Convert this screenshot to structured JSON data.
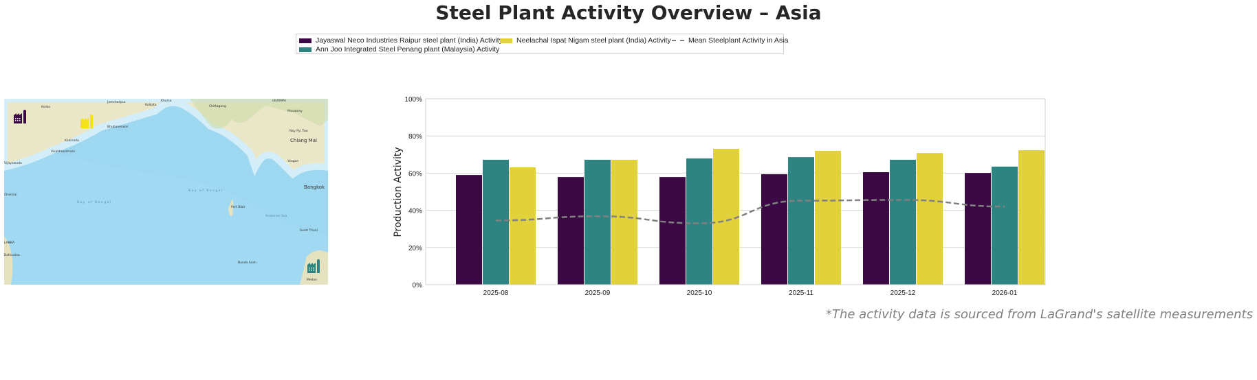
{
  "title": "Steel Plant Activity Overview – Asia",
  "footnote": "*The activity data is sourced from LaGrand's satellite measurements",
  "legend": {
    "items": [
      {
        "label": "Jayaswal Neco Industries Raipur steel plant (India) Activity",
        "color": "#3b0a45",
        "kind": "bar"
      },
      {
        "label": "Ann Joo Integrated Steel Penang plant (Malaysia) Activity",
        "color": "#2d8480",
        "kind": "bar"
      },
      {
        "label": "Neelachal Ispat Nigam steel plant (India) Activity",
        "color": "#e1d13b",
        "kind": "bar"
      },
      {
        "label": "Mean Steelplant Activity in Asia",
        "color": "#808080",
        "kind": "dashed-line"
      }
    ]
  },
  "map": {
    "labels": [
      "Korba",
      "Jamshedpur",
      "Khulna",
      "Kolkata",
      "Chittagong",
      "(BURMA)",
      "Mandalay",
      "Bhubaneswar",
      "Nay Pyi Taw",
      "Kakinada",
      "Visakhapatnam",
      "Vijayawada",
      "Yangon",
      "Chiang Mai",
      "Bay of Bengal",
      "Bay of Bengal",
      "Chennai",
      "Port Blair",
      "Andaman Sea",
      "Bangkok",
      "LANKA",
      "Surat Thani",
      "Banda Aceh",
      "Medan",
      "Batticaloa"
    ],
    "markers": [
      {
        "plant": "Jayaswal Neco Industries Raipur",
        "icon": "factory-icon",
        "color": "#3b0a45"
      },
      {
        "plant": "Neelachal Ispat Nigam",
        "icon": "factory-icon",
        "color": "#f5e11a"
      },
      {
        "plant": "Ann Joo Integrated Steel Penang",
        "icon": "factory-icon",
        "color": "#2d8480"
      }
    ]
  },
  "chart_data": {
    "type": "bar",
    "title": "",
    "xlabel": "",
    "ylabel": "Production Activity",
    "ylim": [
      0,
      100
    ],
    "yticks": [
      "0%",
      "20%",
      "40%",
      "60%",
      "80%",
      "100%"
    ],
    "grid": true,
    "categories": [
      "2025-08",
      "2025-09",
      "2025-10",
      "2025-11",
      "2025-12",
      "2026-01"
    ],
    "series": [
      {
        "name": "Jayaswal Neco Industries Raipur steel plant (India) Activity",
        "color": "#3b0a45",
        "values": [
          59.0,
          57.9,
          57.9,
          59.4,
          60.5,
          60.1
        ]
      },
      {
        "name": "Ann Joo Integrated Steel Penang plant (Malaysia) Activity",
        "color": "#2d8480",
        "values": [
          67.2,
          67.2,
          67.9,
          68.6,
          67.2,
          63.5
        ]
      },
      {
        "name": "Neelachal Ispat Nigam steel plant (India) Activity",
        "color": "#e1d13b",
        "values": [
          63.1,
          67.2,
          73.1,
          72.0,
          70.8,
          72.3
        ]
      }
    ],
    "line": {
      "name": "Mean Steelplant Activity in Asia",
      "color": "#808080",
      "style": "dashed",
      "values": [
        34.5,
        36.8,
        33.0,
        45.2,
        45.6,
        42.0
      ]
    },
    "legend_position": "top-center"
  }
}
